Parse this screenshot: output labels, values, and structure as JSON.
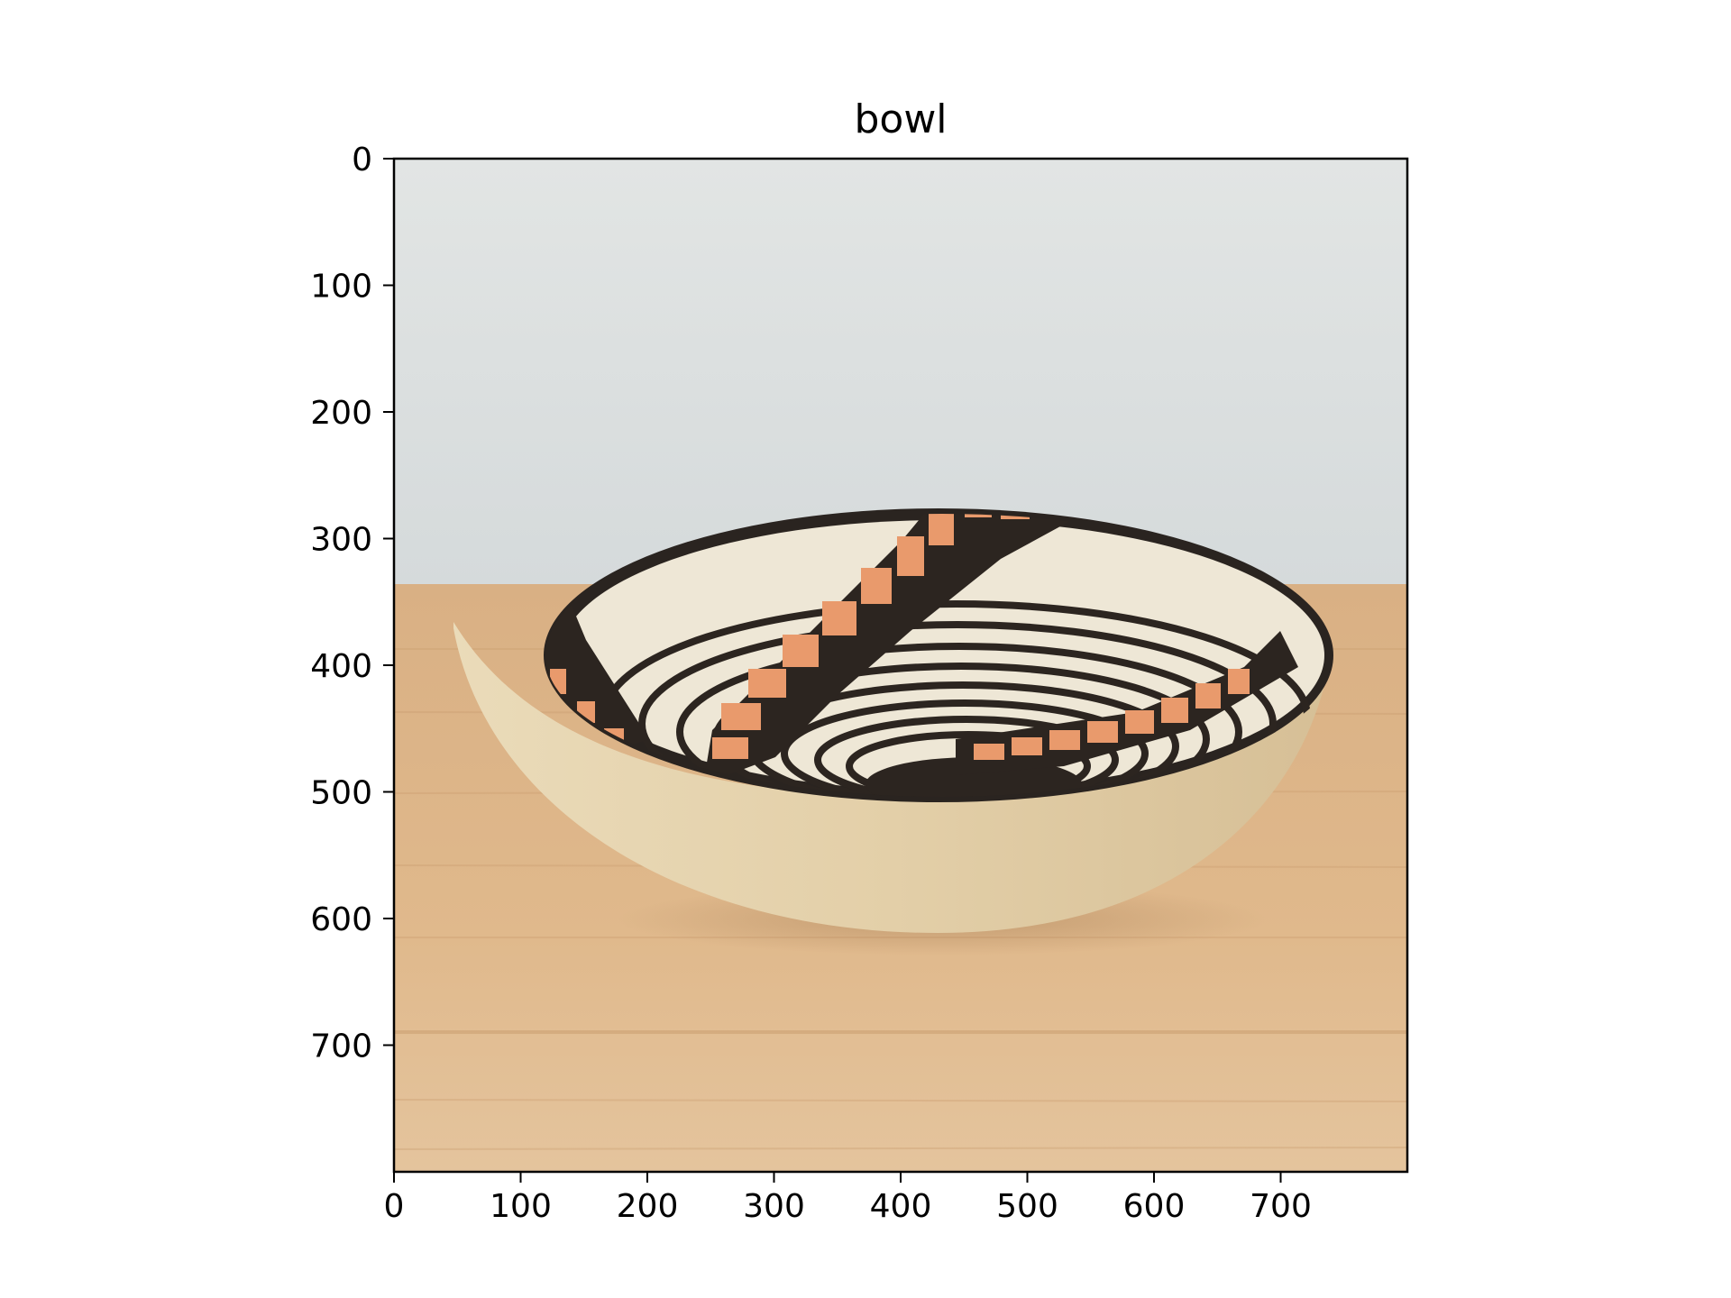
{
  "title": "bowl",
  "axes": {
    "x_ticks": [
      "0",
      "100",
      "200",
      "300",
      "400",
      "500",
      "600",
      "700"
    ],
    "y_ticks": [
      "0",
      "100",
      "200",
      "300",
      "400",
      "500",
      "600",
      "700"
    ],
    "xlim": [
      0,
      800
    ],
    "ylim": [
      800,
      0
    ]
  },
  "image": {
    "subject": "ceramic bowl with black and orange geometric pattern on wooden table",
    "colors": {
      "wall": "#dfe3e2",
      "table": "#dcb387",
      "bowl_outer": "#e3d2ae",
      "bowl_inner": "#eee7d6",
      "stripe": "#2c2520",
      "accent": "#e99a6c",
      "rim": "#2a2420"
    }
  }
}
